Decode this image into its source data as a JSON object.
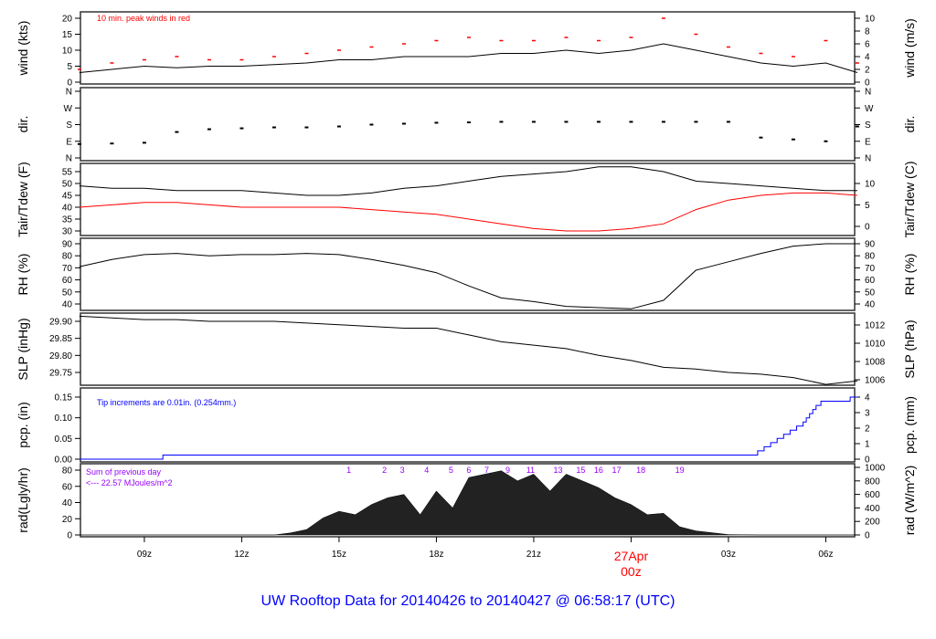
{
  "title": "UW Rooftop Data for 20140426  to  20140427 @ 06:58:17  (UTC)",
  "colors": {
    "line": "#000000",
    "peak": "#ff0000",
    "dew": "#ff0000",
    "pcp": "#0000ff",
    "title": "#0000ff",
    "date": "#ff0000",
    "rad_note": "#9900ff"
  },
  "x_axis": {
    "ticks": [
      "09z",
      "12z",
      "15z",
      "18z",
      "21z",
      "00z",
      "03z",
      "06z"
    ],
    "tick_hours": [
      9,
      12,
      15,
      18,
      21,
      24,
      27,
      30
    ],
    "date_label": "27Apr",
    "range_hours_utc_from_20140426_00z": [
      7.0,
      30.97
    ]
  },
  "chart_data": [
    {
      "type": "line",
      "panel": "wind",
      "ylabel_left": "wind (kts)",
      "ylabel_right": "wind (m/s)",
      "annotation": "10 min. peak winds in red",
      "left_ticks": [
        0,
        5,
        10,
        15,
        20
      ],
      "right_ticks": [
        0,
        2,
        4,
        6,
        8,
        10
      ],
      "ylim": [
        0,
        20
      ],
      "hours": [
        7,
        8,
        9,
        10,
        11,
        12,
        13,
        14,
        15,
        16,
        17,
        18,
        19,
        20,
        21,
        22,
        23,
        24,
        25,
        26,
        27,
        28,
        29,
        30,
        30.97
      ],
      "series": [
        {
          "values": [
            3,
            4,
            5,
            4.5,
            5,
            5,
            5.5,
            6,
            7,
            7,
            8,
            8,
            8,
            9,
            9,
            10,
            9,
            10,
            12,
            10,
            8,
            6,
            5,
            6,
            3
          ]
        },
        {
          "values": [
            4,
            6,
            7,
            8,
            7,
            7,
            8,
            9,
            10,
            11,
            12,
            13,
            14,
            13,
            13,
            14,
            13,
            14,
            20,
            15,
            11,
            9,
            8,
            13,
            6
          ]
        }
      ]
    },
    {
      "type": "scatter",
      "panel": "dir",
      "ylabel_left": "dir.",
      "ylabel_right": "dir.",
      "left_ticks": [
        "N",
        "E",
        "S",
        "W",
        "N"
      ],
      "right_ticks": [
        "N",
        "E",
        "S",
        "W",
        "N"
      ],
      "ylim": [
        0,
        360
      ],
      "hours": [
        7,
        8,
        9,
        10,
        11,
        12,
        13,
        14,
        15,
        16,
        17,
        18,
        19,
        20,
        21,
        22,
        23,
        24,
        25,
        26,
        27,
        28,
        29,
        30,
        30.97
      ],
      "values": [
        75,
        78,
        82,
        140,
        155,
        160,
        165,
        165,
        170,
        180,
        185,
        190,
        192,
        195,
        195,
        195,
        195,
        195,
        195,
        195,
        195,
        110,
        100,
        90,
        170
      ]
    },
    {
      "type": "line",
      "panel": "temp",
      "ylabel_left": "Tair/Tdew (F)",
      "ylabel_right": "Tair/Tdew (C)",
      "left_ticks": [
        30,
        35,
        40,
        45,
        50,
        55
      ],
      "right_ticks": [
        0,
        5,
        10
      ],
      "ylim": [
        29,
        57
      ],
      "hours": [
        7,
        8,
        9,
        10,
        11,
        12,
        13,
        14,
        15,
        16,
        17,
        18,
        19,
        20,
        21,
        22,
        23,
        24,
        25,
        26,
        27,
        28,
        29,
        30,
        30.97
      ],
      "series": [
        {
          "name": "Tair",
          "values": [
            49,
            48,
            48,
            47,
            47,
            47,
            46,
            45,
            45,
            46,
            48,
            49,
            51,
            53,
            54,
            55,
            57,
            57,
            55,
            51,
            50,
            49,
            48,
            47,
            47
          ]
        },
        {
          "name": "Tdew",
          "values": [
            40,
            41,
            42,
            42,
            41,
            40,
            40,
            40,
            40,
            39,
            38,
            37,
            35,
            33,
            31,
            30,
            30,
            31,
            33,
            39,
            43,
            45,
            46,
            46,
            45
          ]
        }
      ]
    },
    {
      "type": "line",
      "panel": "rh",
      "ylabel_left": "RH (%)",
      "ylabel_right": "RH (%)",
      "left_ticks": [
        40,
        50,
        60,
        70,
        80,
        90
      ],
      "right_ticks": [
        40,
        50,
        60,
        70,
        80,
        90
      ],
      "ylim": [
        35,
        93
      ],
      "hours": [
        7,
        8,
        9,
        10,
        11,
        12,
        13,
        14,
        15,
        16,
        17,
        18,
        19,
        20,
        21,
        22,
        23,
        24,
        25,
        26,
        27,
        28,
        29,
        30,
        30.97
      ],
      "values": [
        71,
        77,
        81,
        82,
        80,
        81,
        81,
        82,
        81,
        77,
        72,
        66,
        55,
        45,
        42,
        38,
        37,
        36,
        43,
        68,
        75,
        82,
        88,
        90,
        90
      ]
    },
    {
      "type": "line",
      "panel": "slp",
      "ylabel_left": "SLP (inHg)",
      "ylabel_right": "SLP (hPa)",
      "left_ticks": [
        29.75,
        29.8,
        29.85,
        29.9
      ],
      "right_ticks": [
        1006,
        1008,
        1010,
        1012
      ],
      "ylim": [
        29.71,
        29.92
      ],
      "hours": [
        7,
        8,
        9,
        10,
        11,
        12,
        13,
        14,
        15,
        16,
        17,
        18,
        19,
        20,
        21,
        22,
        23,
        24,
        25,
        26,
        27,
        28,
        29,
        30,
        30.97
      ],
      "values": [
        29.915,
        29.91,
        29.905,
        29.905,
        29.9,
        29.9,
        29.9,
        29.895,
        29.89,
        29.885,
        29.88,
        29.88,
        29.86,
        29.84,
        29.83,
        29.82,
        29.8,
        29.785,
        29.765,
        29.76,
        29.75,
        29.745,
        29.735,
        29.715,
        29.725
      ]
    },
    {
      "type": "line",
      "panel": "pcp",
      "ylabel_left": "pcp. (in)",
      "ylabel_right": "pcp. (mm)",
      "annotation": "Tip increments are 0.01in. (0.254mm.)",
      "left_ticks": [
        0.0,
        0.05,
        0.1,
        0.15
      ],
      "right_ticks": [
        0,
        1,
        2,
        3,
        4
      ],
      "ylim": [
        0,
        0.16
      ],
      "hours": [
        7,
        9.57,
        27.9,
        28.1,
        28.3,
        28.5,
        28.7,
        28.9,
        29.1,
        29.3,
        29.4,
        29.5,
        29.6,
        29.7,
        29.85,
        30.75,
        30.97
      ],
      "values": [
        0,
        0.01,
        0.02,
        0.03,
        0.04,
        0.05,
        0.06,
        0.07,
        0.08,
        0.09,
        0.1,
        0.11,
        0.12,
        0.13,
        0.14,
        0.15,
        0.15
      ]
    },
    {
      "type": "area",
      "panel": "rad",
      "ylabel_left": "rad(Lgly/hr)",
      "ylabel_right": "rad (W/m^2)",
      "annotation_lines": [
        "Sum of previous day",
        "<--- 22.57 MJoules/m^2"
      ],
      "markers": [
        "1",
        "2",
        "3",
        "4",
        "5",
        "6",
        "7",
        "9",
        "11",
        "13",
        "15",
        "16",
        "17",
        "18",
        "19"
      ],
      "marker_hours": [
        15.3,
        16.4,
        16.95,
        17.7,
        18.45,
        19.0,
        19.55,
        20.2,
        20.9,
        21.75,
        22.45,
        23.0,
        23.55,
        24.3,
        25.5
      ],
      "left_ticks": [
        0,
        20,
        40,
        60,
        80
      ],
      "right_ticks": [
        0,
        200,
        400,
        600,
        800,
        1000
      ],
      "ylim": [
        0,
        1000
      ],
      "hours": [
        7,
        13,
        13.5,
        14,
        14.5,
        15,
        15.5,
        16,
        16.5,
        17,
        17.5,
        18,
        18.5,
        19,
        19.5,
        20,
        20.5,
        21,
        21.5,
        22,
        22.5,
        23,
        23.5,
        24,
        24.5,
        25,
        25.5,
        26,
        27,
        28,
        30.97
      ],
      "values": [
        0,
        0,
        30,
        80,
        250,
        350,
        300,
        450,
        550,
        600,
        300,
        650,
        400,
        850,
        900,
        950,
        800,
        900,
        650,
        900,
        800,
        700,
        550,
        450,
        300,
        320,
        120,
        60,
        5,
        0,
        0
      ]
    }
  ]
}
